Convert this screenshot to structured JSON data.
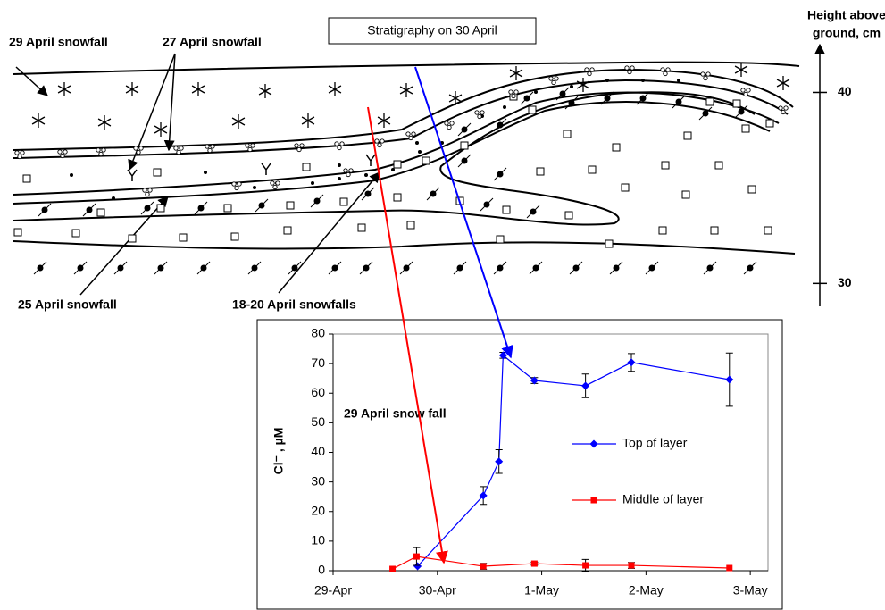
{
  "diagram": {
    "title": "Stratigraphy on 30 April",
    "labels": [
      "29 April snowfall",
      "27 April snowfall",
      "25 April snowfall",
      "18-20 April snowfalls"
    ]
  },
  "height_axis": {
    "title": [
      "Height above",
      "ground, cm"
    ],
    "lim": [
      28.8,
      42.5
    ],
    "ticks": [
      30,
      40
    ]
  },
  "chart_data": {
    "type": "line",
    "ylabel": "Cl⁻ , µM",
    "annotations": [
      "29 April snow fall"
    ],
    "xlim": [
      0,
      4.17
    ],
    "xticks": [
      {
        "value": 0,
        "label": "29-Apr"
      },
      {
        "value": 1,
        "label": "30-Apr"
      },
      {
        "value": 2,
        "label": "1-May"
      },
      {
        "value": 3,
        "label": "2-May"
      },
      {
        "value": 4,
        "label": "3-May"
      }
    ],
    "ylim": [
      0,
      80
    ],
    "yticks": [
      0,
      10,
      20,
      30,
      40,
      50,
      60,
      70,
      80
    ],
    "legend": "right",
    "series": [
      {
        "name": "Top of layer",
        "color": "#0000ff",
        "marker": "diamond",
        "x": [
          0.81,
          1.44,
          1.59,
          1.63,
          1.93,
          2.42,
          2.86,
          3.8
        ],
        "values": [
          1.5,
          25.4,
          36.9,
          72.8,
          64.3,
          62.5,
          70.4,
          64.6
        ],
        "errors": [
          null,
          3,
          4,
          1,
          1,
          4,
          3,
          9
        ]
      },
      {
        "name": "Middle of layer",
        "color": "#ff0000",
        "marker": "square",
        "x": [
          0.57,
          0.8,
          1.44,
          1.93,
          2.42,
          2.86,
          3.8
        ],
        "values": [
          0.6,
          4.8,
          1.5,
          2.4,
          1.8,
          1.8,
          0.9
        ],
        "errors": [
          null,
          3,
          1,
          0.5,
          2,
          1,
          null
        ]
      }
    ]
  }
}
